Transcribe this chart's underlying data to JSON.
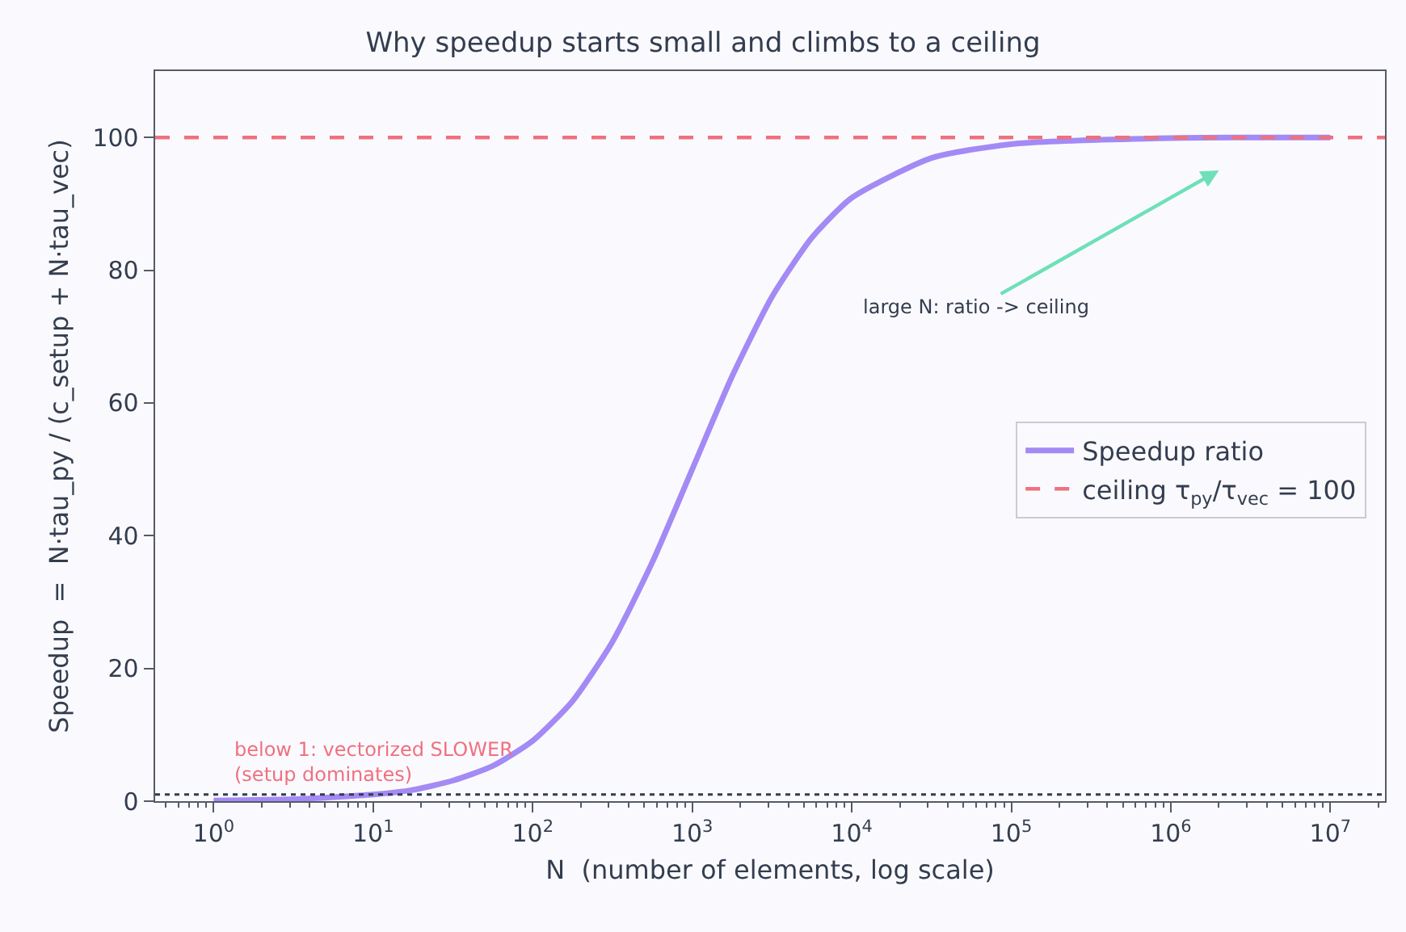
{
  "chart_data": {
    "type": "line",
    "title": "Why speedup starts small and climbs to a ceiling",
    "xlabel": "N  (number of elements, log scale)",
    "ylabel": "Speedup  =  N·tau_py / (c_setup + N·tau_vec)",
    "x": [
      1,
      3.16,
      10,
      17.8,
      31.6,
      56.2,
      100,
      178,
      316,
      562,
      1000,
      1778,
      3162,
      5623,
      10000,
      31623,
      100000,
      1000000,
      10000000
    ],
    "series": [
      {
        "name": "Speedup ratio",
        "color": "#a38af5",
        "values": [
          0.1,
          0.3,
          1.0,
          1.7,
          3.1,
          5.3,
          9.1,
          15.1,
          24.0,
          36.0,
          50.0,
          64.0,
          76.0,
          84.9,
          90.9,
          96.9,
          99.0,
          99.9,
          100.0
        ]
      }
    ],
    "log": "x",
    "xlim": [
      0.43,
      22000000
    ],
    "ylim": [
      0,
      110
    ],
    "xticks": [
      {
        "value": 1,
        "label": "10$^{0}$"
      },
      {
        "value": 10,
        "label": "10$^{1}$"
      },
      {
        "value": 100,
        "label": "10$^{2}$"
      },
      {
        "value": 1000,
        "label": "10$^{3}$"
      },
      {
        "value": 10000,
        "label": "10$^{4}$"
      },
      {
        "value": 100000,
        "label": "10$^{5}$"
      },
      {
        "value": 1000000,
        "label": "10$^{6}$"
      },
      {
        "value": 10000000,
        "label": "10$^{7}$"
      }
    ],
    "yticks": [
      0,
      20,
      40,
      60,
      80,
      100
    ],
    "ref_lines": [
      {
        "axis": "y",
        "value": 100,
        "label": "ceiling τ$_{py}$/τ$_{vec}$ = 100",
        "color": "#f0707f",
        "line_style": "dashed"
      },
      {
        "axis": "y",
        "value": 1,
        "color": "#333d4f",
        "line_style": "dotted"
      }
    ],
    "annotations": [
      "large N: ratio -> ceiling",
      {
        "text": "below 1: vectorized SLOWER\n(setup dominates)",
        "x": 1.3,
        "y": 1
      }
    ],
    "grid": false,
    "legend": "right",
    "marker": "none",
    "line_style": "solid"
  }
}
